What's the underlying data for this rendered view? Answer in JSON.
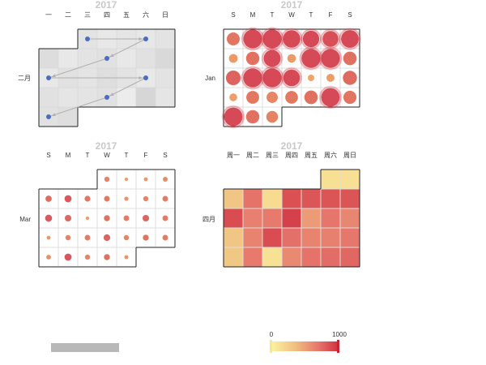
{
  "chart_data": [
    {
      "type": "calendar-scatter-graph",
      "year_label": "2017",
      "month_label": "二月",
      "day_labels": [
        "一",
        "二",
        "三",
        "四",
        "五",
        "六",
        "日"
      ],
      "colors": {
        "node": "#4a6cc4",
        "link": "#b0b0b0",
        "cell_light": "#f2f2f2",
        "cell_dark": "#d6d6d6"
      },
      "cell_shades": [
        [
          null,
          null,
          0.55,
          0.35,
          0.45,
          0.4,
          0.55
        ],
        [
          0.75,
          0.35,
          0.55,
          0.6,
          0.35,
          0.6,
          0.9
        ],
        [
          0.35,
          0.6,
          0.5,
          0.7,
          0.55,
          0.35,
          0.55
        ],
        [
          0.6,
          0.45,
          0.5,
          0.6,
          0.2,
          1.0,
          0.45
        ],
        [
          0.6,
          0.7,
          null,
          null,
          null,
          null,
          null
        ]
      ],
      "nodes": [
        {
          "week": 0,
          "day": 2
        },
        {
          "week": 0,
          "day": 5
        },
        {
          "week": 1,
          "day": 3
        },
        {
          "week": 2,
          "day": 0
        },
        {
          "week": 2,
          "day": 5
        },
        {
          "week": 3,
          "day": 3
        },
        {
          "week": 4,
          "day": 0
        }
      ],
      "links": [
        [
          0,
          1
        ],
        [
          1,
          2
        ],
        [
          2,
          3
        ],
        [
          3,
          4
        ],
        [
          4,
          5
        ],
        [
          5,
          6
        ]
      ]
    },
    {
      "type": "calendar-bubble",
      "year_label": "2017",
      "month_label": "Jan",
      "day_labels": [
        "S",
        "M",
        "T",
        "W",
        "T",
        "F",
        "S"
      ],
      "color_high": "#d0303f",
      "color_low": "#f0a050",
      "cells": [
        [
          420,
          980,
          1000,
          830,
          720,
          670,
          860
        ],
        [
          160,
          450,
          780,
          150,
          1000,
          1000,
          460
        ],
        [
          560,
          1000,
          1000,
          750,
          70,
          130,
          510
        ],
        [
          120,
          410,
          300,
          400,
          460,
          950,
          430
        ],
        [
          950,
          450,
          330,
          null,
          null,
          null,
          null
        ]
      ]
    },
    {
      "type": "calendar-bubble",
      "year_label": "2017",
      "month_label": "Mar",
      "day_labels": [
        "S",
        "M",
        "T",
        "W",
        "T",
        "F",
        "S"
      ],
      "color_high": "#d0303f",
      "color_low": "#f0a050",
      "cells": [
        [
          null,
          null,
          null,
          320,
          120,
          160,
          260
        ],
        [
          500,
          650,
          420,
          400,
          200,
          310,
          380
        ],
        [
          640,
          540,
          120,
          450,
          380,
          550,
          380
        ],
        [
          160,
          330,
          380,
          560,
          320,
          440,
          380
        ],
        [
          250,
          660,
          310,
          450,
          180,
          null,
          null
        ]
      ]
    },
    {
      "type": "calendar-heatmap",
      "year_label": "2017",
      "month_label": "四月",
      "day_labels": [
        "周一",
        "周二",
        "周三",
        "周四",
        "周五",
        "周六",
        "周日"
      ],
      "cells": [
        [
          null,
          null,
          null,
          null,
          null,
          130,
          130
        ],
        [
          300,
          680,
          160,
          850,
          820,
          830,
          830
        ],
        [
          860,
          620,
          650,
          920,
          500,
          670,
          590
        ],
        [
          300,
          610,
          860,
          690,
          610,
          620,
          660
        ],
        [
          290,
          650,
          120,
          580,
          680,
          710,
          740
        ]
      ],
      "visual_map": {
        "min": 0,
        "max": 1000,
        "min_label": "0",
        "max_label": "1000",
        "colors": [
          "#fbf3a1",
          "#f0c080",
          "#e6766c",
          "#d0303f"
        ]
      }
    }
  ]
}
